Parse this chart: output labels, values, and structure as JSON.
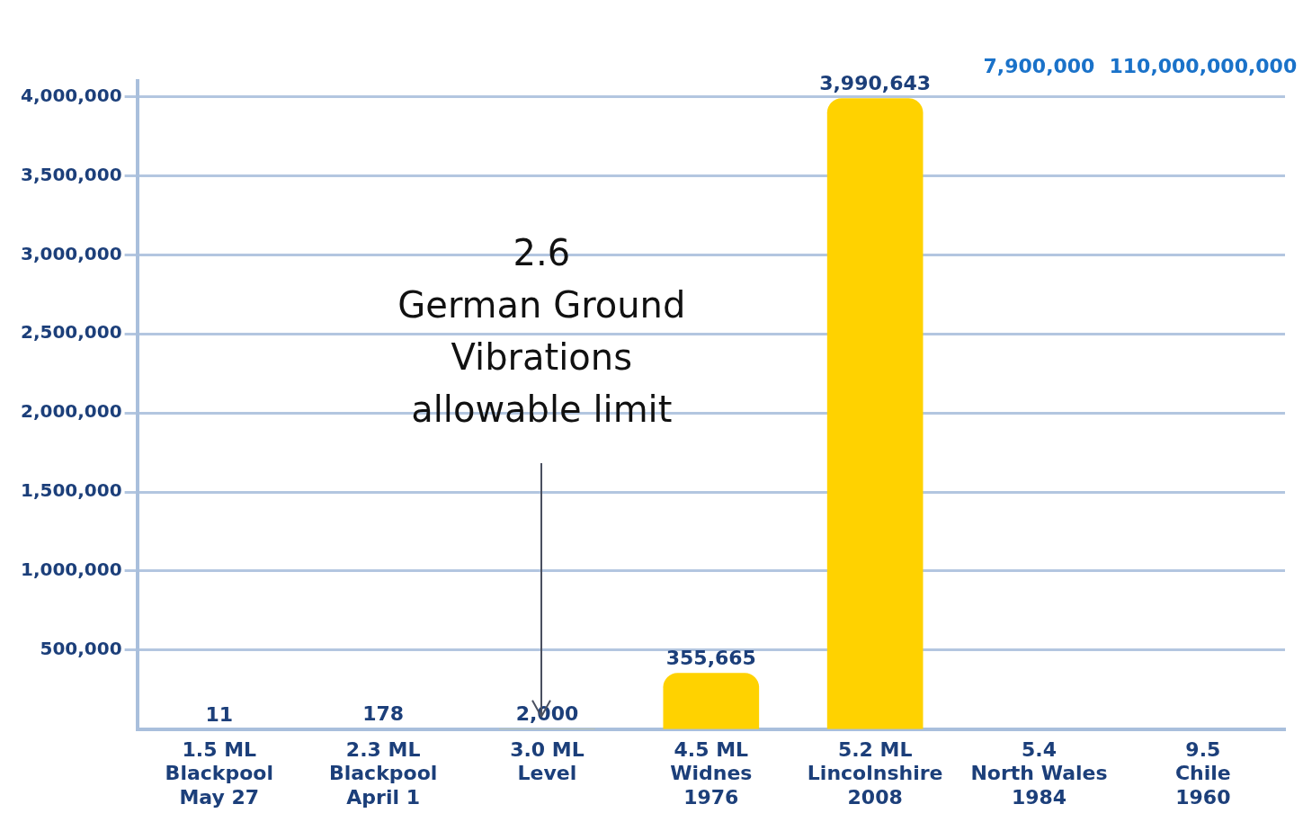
{
  "chart_data": {
    "type": "bar",
    "categories": [
      "1.5 ML\nBlackpool\nMay 27",
      "2.3 ML\nBlackpool\nApril 1",
      "3.0 ML\nLevel",
      "4.5 ML\nWidnes\n1976",
      "5.2 ML\nLincolnshire\n2008",
      "5.4\nNorth Wales\n1984",
      "9.5\nChile\n1960"
    ],
    "values": [
      11,
      178,
      2000,
      355665,
      3990643,
      null,
      null
    ],
    "value_labels": [
      "11",
      "178",
      "2,000",
      "355,665",
      "3,990,643",
      "7,900,000",
      "110,000,000,000"
    ],
    "color": "#ffd200",
    "ylim": [
      0,
      4100000
    ],
    "yticks": [
      {
        "value": 500000,
        "label": "500,000"
      },
      {
        "value": 1000000,
        "label": "1,000,000"
      },
      {
        "value": 1500000,
        "label": "1,500,000"
      },
      {
        "value": 2000000,
        "label": "2,000,000"
      },
      {
        "value": 2500000,
        "label": "2,500,000"
      },
      {
        "value": 3000000,
        "label": "3,000,000"
      },
      {
        "value": 3500000,
        "label": "3,500,000"
      },
      {
        "value": 4000000,
        "label": "4,000,000"
      }
    ],
    "grid": "y",
    "annotations": [
      "2.6\nGerman Ground\nVibrations\nallowable limit"
    ]
  }
}
